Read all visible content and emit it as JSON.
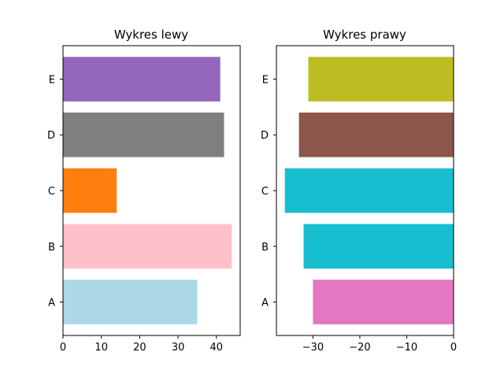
{
  "chart_data": [
    {
      "type": "bar",
      "orientation": "horizontal",
      "title": "Wykres lewy",
      "xlabel": "",
      "ylabel": "",
      "categories": [
        "A",
        "B",
        "C",
        "D",
        "E"
      ],
      "values": [
        35,
        44,
        14,
        42,
        41
      ],
      "colors": [
        "#add8e6",
        "#ffc0cb",
        "#ff7f0e",
        "#7f7f7f",
        "#9467bd"
      ],
      "xlim": [
        0,
        46.2
      ],
      "xticks": [
        0,
        10,
        20,
        30,
        40
      ],
      "xtick_labels": [
        "0",
        "10",
        "20",
        "30",
        "40"
      ],
      "grid": false
    },
    {
      "type": "bar",
      "orientation": "horizontal",
      "title": "Wykres prawy",
      "xlabel": "",
      "ylabel": "",
      "categories": [
        "A",
        "B",
        "C",
        "D",
        "E"
      ],
      "values": [
        -30,
        -32,
        -36,
        -33,
        -31
      ],
      "colors": [
        "#e377c2",
        "#17becf",
        "#17becf",
        "#8c564b",
        "#bcbd22"
      ],
      "xlim": [
        -37.8,
        0
      ],
      "xticks": [
        -30,
        -20,
        -10,
        0
      ],
      "xtick_labels": [
        "−30",
        "−20",
        "−10",
        "0"
      ],
      "grid": false
    }
  ]
}
